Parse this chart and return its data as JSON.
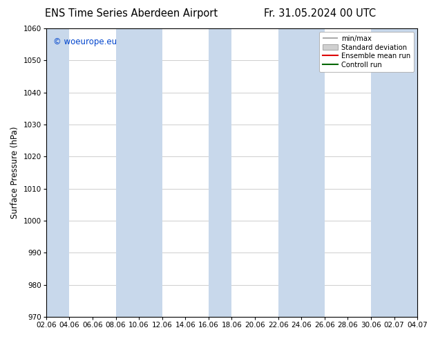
{
  "title_left": "ENS Time Series Aberdeen Airport",
  "title_right": "Fr. 31.05.2024 00 UTC",
  "ylabel": "Surface Pressure (hPa)",
  "ylim": [
    970,
    1060
  ],
  "yticks": [
    970,
    980,
    990,
    1000,
    1010,
    1020,
    1030,
    1040,
    1050,
    1060
  ],
  "xtick_labels": [
    "02.06",
    "04.06",
    "06.06",
    "08.06",
    "10.06",
    "12.06",
    "14.06",
    "16.06",
    "18.06",
    "20.06",
    "22.06",
    "24.06",
    "26.06",
    "28.06",
    "30.06",
    "02.07",
    "04.07"
  ],
  "watermark": "© woeurope.eu",
  "watermark_color": "#0044cc",
  "bg_color": "#ffffff",
  "plot_bg_color": "#ffffff",
  "shaded_band_color": "#c8d8eb",
  "legend_items": [
    "min/max",
    "Standard deviation",
    "Ensemble mean run",
    "Controll run"
  ],
  "title_fontsize": 10.5,
  "axis_fontsize": 8.5,
  "tick_fontsize": 7.5
}
